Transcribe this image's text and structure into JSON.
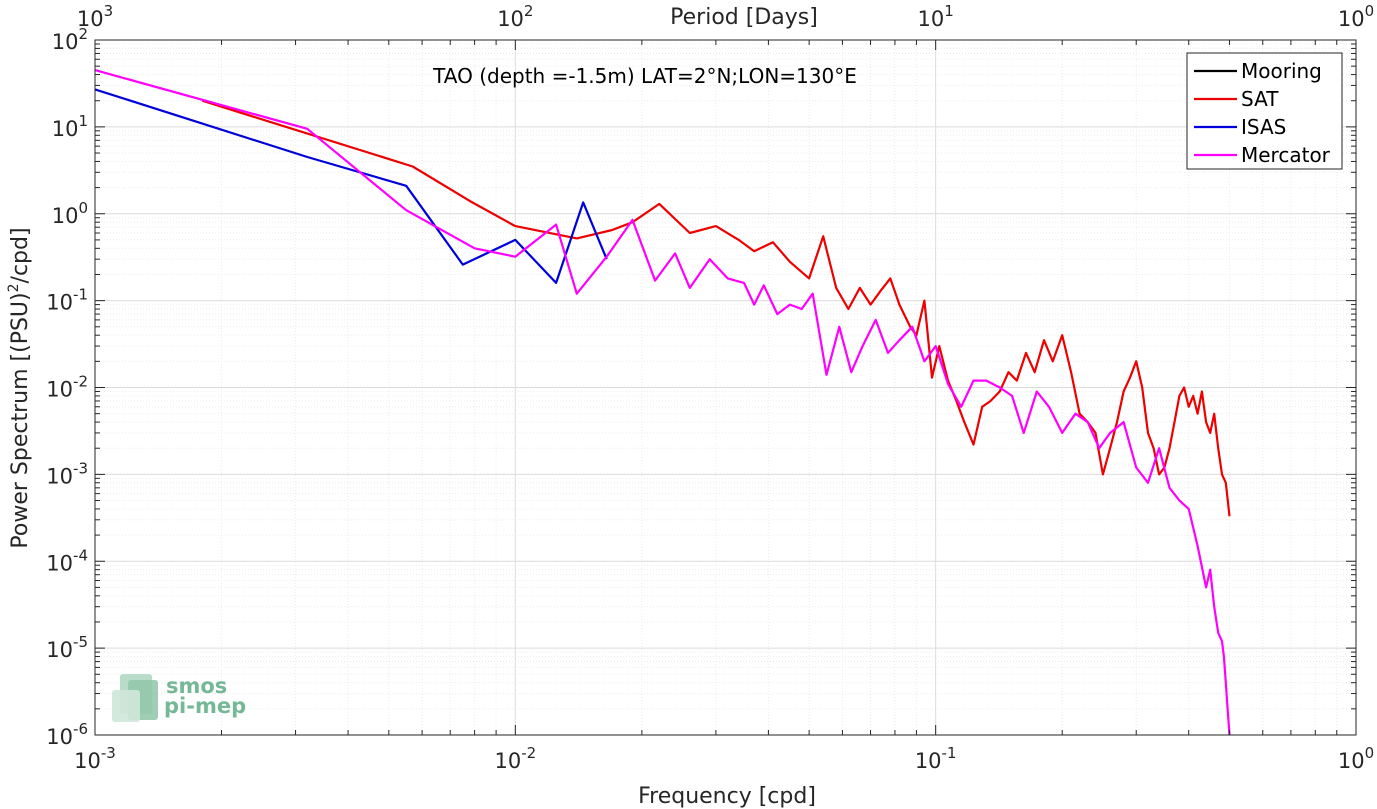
{
  "chart_data": {
    "type": "line",
    "title": "TAO (depth =-1.5m) LAT=2°N;LON=130°E",
    "xlabel": "Frequency [cpd]",
    "ylabel": "Power Spectrum [(PSU)",
    "ylabel_sup": "2",
    "ylabel_tail": "/cpd]",
    "top_xlabel": "Period [Days]",
    "xscale": "log",
    "yscale": "log",
    "xlim": [
      0.001,
      1
    ],
    "ylim": [
      1e-06,
      100
    ],
    "grid": true,
    "minor_grid": true,
    "legend_position": "top-right",
    "x_ticks": [
      {
        "base": "10",
        "exp": "-3"
      },
      {
        "base": "10",
        "exp": "-2"
      },
      {
        "base": "10",
        "exp": "-1"
      },
      {
        "base": "10",
        "exp": "0"
      }
    ],
    "y_ticks": [
      {
        "base": "10",
        "exp": "-6"
      },
      {
        "base": "10",
        "exp": "-5"
      },
      {
        "base": "10",
        "exp": "-4"
      },
      {
        "base": "10",
        "exp": "-3"
      },
      {
        "base": "10",
        "exp": "-2"
      },
      {
        "base": "10",
        "exp": "-1"
      },
      {
        "base": "10",
        "exp": "0"
      },
      {
        "base": "10",
        "exp": "1"
      },
      {
        "base": "10",
        "exp": "2"
      }
    ],
    "top_ticks": [
      {
        "base": "10",
        "exp": "3"
      },
      {
        "base": "10",
        "exp": "2"
      },
      {
        "base": "10",
        "exp": "1"
      },
      {
        "base": "10",
        "exp": "0"
      }
    ],
    "series": [
      {
        "name": "Mooring",
        "color": "#000000",
        "x": [],
        "y": []
      },
      {
        "name": "SAT",
        "color": "#ee0000",
        "x": [
          0.0018,
          0.0057,
          0.0078,
          0.01,
          0.014,
          0.017,
          0.019,
          0.022,
          0.026,
          0.03,
          0.034,
          0.037,
          0.041,
          0.045,
          0.05,
          0.054,
          0.058,
          0.062,
          0.066,
          0.07,
          0.074,
          0.078,
          0.082,
          0.087,
          0.09,
          0.094,
          0.098,
          0.102,
          0.107,
          0.112,
          0.117,
          0.123,
          0.129,
          0.135,
          0.142,
          0.149,
          0.156,
          0.164,
          0.172,
          0.181,
          0.19,
          0.2,
          0.21,
          0.22,
          0.23,
          0.24,
          0.25,
          0.26,
          0.27,
          0.28,
          0.29,
          0.3,
          0.31,
          0.32,
          0.33,
          0.34,
          0.35,
          0.36,
          0.37,
          0.38,
          0.39,
          0.4,
          0.41,
          0.42,
          0.43,
          0.44,
          0.45,
          0.46,
          0.47,
          0.48,
          0.49,
          0.5
        ],
        "y": [
          20,
          3.5,
          1.4,
          0.72,
          0.52,
          0.65,
          0.8,
          1.3,
          0.6,
          0.72,
          0.5,
          0.37,
          0.47,
          0.28,
          0.18,
          0.55,
          0.14,
          0.08,
          0.14,
          0.09,
          0.13,
          0.18,
          0.09,
          0.05,
          0.04,
          0.1,
          0.013,
          0.03,
          0.012,
          0.007,
          0.004,
          0.0022,
          0.006,
          0.007,
          0.009,
          0.015,
          0.012,
          0.025,
          0.015,
          0.035,
          0.02,
          0.04,
          0.015,
          0.005,
          0.004,
          0.003,
          0.001,
          0.002,
          0.004,
          0.009,
          0.013,
          0.02,
          0.01,
          0.003,
          0.002,
          0.001,
          0.0012,
          0.002,
          0.004,
          0.008,
          0.01,
          0.006,
          0.008,
          0.005,
          0.009,
          0.004,
          0.003,
          0.005,
          0.002,
          0.001,
          0.0008,
          0.00033
        ]
      },
      {
        "name": "ISAS",
        "color": "#0000dd",
        "x": [
          0.001,
          0.0032,
          0.0055,
          0.0075,
          0.01,
          0.0125,
          0.0145,
          0.0165
        ],
        "y": [
          27,
          4.5,
          2.1,
          0.26,
          0.5,
          0.16,
          1.35,
          0.3
        ]
      },
      {
        "name": "Mercator",
        "color": "#ff00ff",
        "x": [
          0.001,
          0.0032,
          0.0055,
          0.008,
          0.01,
          0.0125,
          0.014,
          0.0165,
          0.019,
          0.0215,
          0.024,
          0.026,
          0.029,
          0.032,
          0.035,
          0.037,
          0.039,
          0.042,
          0.045,
          0.048,
          0.051,
          0.055,
          0.059,
          0.063,
          0.067,
          0.072,
          0.077,
          0.082,
          0.088,
          0.094,
          0.1,
          0.107,
          0.115,
          0.123,
          0.132,
          0.142,
          0.152,
          0.162,
          0.174,
          0.186,
          0.2,
          0.215,
          0.23,
          0.245,
          0.26,
          0.28,
          0.3,
          0.32,
          0.34,
          0.36,
          0.38,
          0.4,
          0.42,
          0.44,
          0.45,
          0.46,
          0.47,
          0.48,
          0.485,
          0.49,
          0.495,
          0.5
        ],
        "y": [
          45,
          9.5,
          1.1,
          0.4,
          0.32,
          0.75,
          0.12,
          0.32,
          0.85,
          0.17,
          0.35,
          0.14,
          0.3,
          0.18,
          0.16,
          0.09,
          0.15,
          0.07,
          0.09,
          0.08,
          0.12,
          0.014,
          0.05,
          0.015,
          0.03,
          0.06,
          0.025,
          0.035,
          0.05,
          0.02,
          0.03,
          0.011,
          0.006,
          0.012,
          0.012,
          0.01,
          0.008,
          0.003,
          0.009,
          0.006,
          0.003,
          0.005,
          0.004,
          0.002,
          0.003,
          0.004,
          0.0012,
          0.0008,
          0.002,
          0.0007,
          0.0005,
          0.0004,
          0.00015,
          5e-05,
          8e-05,
          3e-05,
          1.5e-05,
          1.2e-05,
          8e-06,
          4e-06,
          2e-06,
          1e-06
        ]
      }
    ]
  },
  "logo": {
    "line1": "smos",
    "line2": "pi-mep"
  }
}
